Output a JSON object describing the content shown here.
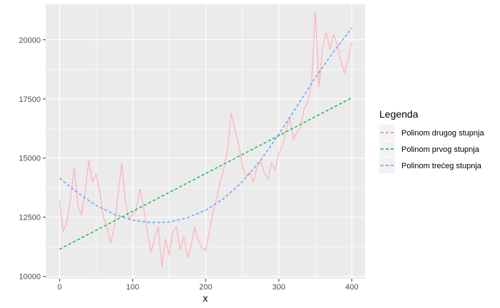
{
  "chart_data": {
    "type": "line",
    "xlabel": "x",
    "ylabel": "",
    "xlim": [
      -19,
      418
    ],
    "ylim": [
      9900,
      21500
    ],
    "x_ticks": [
      0,
      100,
      200,
      300,
      400
    ],
    "y_ticks": [
      10000,
      12500,
      15000,
      17500,
      20000
    ],
    "x_tick_labels": [
      "0",
      "100",
      "200",
      "300",
      "400"
    ],
    "y_tick_labels": [
      "10000",
      "12500",
      "15000",
      "17500",
      "20000"
    ],
    "grid": true,
    "panel_background": "#ebebeb",
    "legend": {
      "title": "Legenda",
      "position": "right",
      "entries": [
        {
          "label": "Polinom drugog stupnja",
          "color": "#f8766d"
        },
        {
          "label": "Polinom prvog stupnja",
          "color": "#00ba38"
        },
        {
          "label": "Polinom trećeg stupnja",
          "color": "#619cff"
        }
      ]
    },
    "data_series": {
      "color": "#ffb6c1",
      "x": [
        0,
        5,
        10,
        15,
        20,
        25,
        30,
        35,
        40,
        45,
        50,
        55,
        60,
        65,
        70,
        75,
        80,
        85,
        90,
        95,
        100,
        105,
        110,
        115,
        120,
        125,
        130,
        135,
        140,
        145,
        150,
        155,
        160,
        165,
        170,
        175,
        180,
        185,
        190,
        195,
        200,
        205,
        210,
        215,
        220,
        225,
        230,
        235,
        240,
        245,
        250,
        255,
        260,
        265,
        270,
        275,
        280,
        285,
        290,
        295,
        300,
        305,
        310,
        315,
        320,
        325,
        330,
        335,
        340,
        345,
        350,
        355,
        360,
        365,
        370,
        375,
        380,
        385,
        390,
        395,
        400
      ],
      "y": [
        13200,
        11900,
        12300,
        13300,
        14600,
        13000,
        12600,
        13600,
        14900,
        14000,
        14300,
        13600,
        12500,
        12100,
        11400,
        12100,
        13500,
        14800,
        13200,
        12400,
        12600,
        12800,
        13700,
        12900,
        11900,
        11000,
        11600,
        12100,
        10400,
        11600,
        10900,
        11900,
        12100,
        11100,
        11700,
        10800,
        11300,
        12100,
        11500,
        11200,
        11100,
        11900,
        12700,
        13300,
        14000,
        14600,
        15400,
        16900,
        16200,
        15600,
        14700,
        14200,
        14400,
        14000,
        14600,
        14900,
        14400,
        14100,
        14800,
        14500,
        15200,
        15500,
        16200,
        16700,
        15800,
        16100,
        16300,
        17100,
        17400,
        18200,
        21200,
        18000,
        19700,
        20300,
        19600,
        20200,
        19800,
        19100,
        18600,
        19200,
        19900
      ]
    },
    "series": [
      {
        "name": "Polinom prvog stupnja",
        "color": "#00ba38",
        "x": [
          0,
          50,
          100,
          150,
          200,
          250,
          300,
          350,
          400
        ],
        "y": [
          11150,
          11950,
          12750,
          13550,
          14350,
          15150,
          15950,
          16750,
          17550
        ]
      },
      {
        "name": "Polinom trećeg stupnja",
        "color": "#619cff",
        "x": [
          0,
          25,
          50,
          75,
          100,
          125,
          150,
          175,
          200,
          225,
          250,
          275,
          300,
          325,
          350,
          375,
          400
        ],
        "y": [
          14150,
          13530,
          13000,
          12620,
          12380,
          12270,
          12300,
          12480,
          12800,
          13300,
          14000,
          14900,
          16000,
          17200,
          18400,
          19500,
          20500
        ]
      }
    ]
  }
}
